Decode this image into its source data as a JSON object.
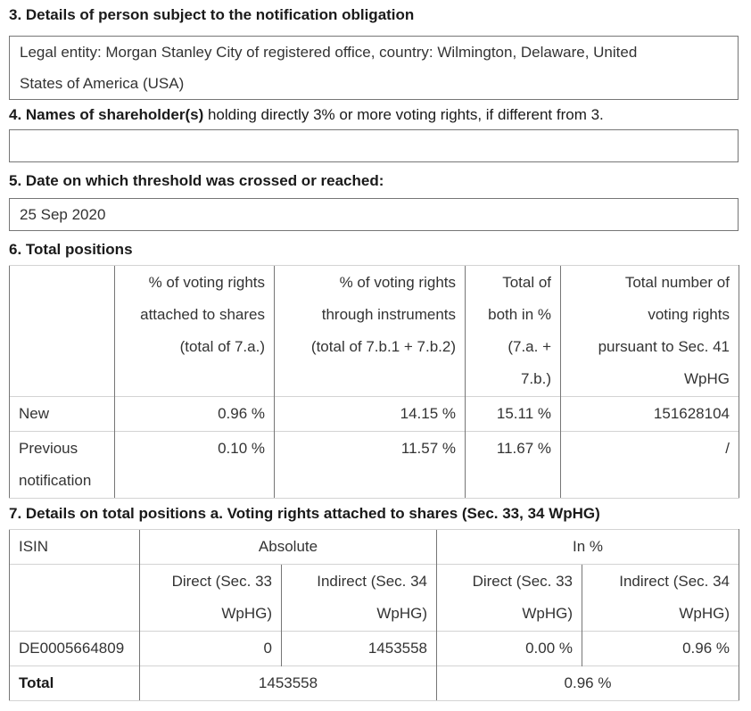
{
  "colors": {
    "background": "#ffffff",
    "text": "#333333",
    "heading": "#1a1a1a",
    "border_dark": "#767676",
    "border_light": "#d3d3d3"
  },
  "sections": {
    "s3": {
      "heading": "3. Details of person subject to the notification obligation",
      "box_text": "Legal entity: Morgan Stanley City of registered office, country: Wilmington, Delaware, United States of America (USA)"
    },
    "s4": {
      "heading_bold": "4. Names of shareholder(s)",
      "heading_rest": " holding directly 3% or more voting rights, if different from 3.",
      "box_text": ""
    },
    "s5": {
      "heading": "5. Date on which threshold was crossed or reached:",
      "box_text": "25 Sep 2020"
    },
    "s6": {
      "heading": "6. Total positions",
      "table": {
        "col_headers": [
          "",
          "% of voting rights attached to shares (total of 7.a.)",
          "% of voting rights through instruments (total of 7.b.1 + 7.b.2)",
          "Total of both in % (7.a. + 7.b.)",
          "Total number of voting rights pursuant to Sec. 41 WpHG"
        ],
        "rows": [
          {
            "label": "New",
            "values": [
              "0.96 %",
              "14.15 %",
              "15.11 %",
              "151628104"
            ]
          },
          {
            "label": "Previous notification",
            "values": [
              "0.10 %",
              "11.57 %",
              "11.67 %",
              "/"
            ]
          }
        ]
      }
    },
    "s7": {
      "heading": "7. Details on total positions a. Voting rights attached to shares (Sec. 33, 34 WpHG)",
      "table": {
        "corner": "ISIN",
        "group_headers": [
          "Absolute",
          "In %"
        ],
        "sub_headers": [
          "Direct (Sec. 33 WpHG)",
          "Indirect (Sec. 34 WpHG)",
          "Direct (Sec. 33 WpHG)",
          "Indirect (Sec. 34 WpHG)"
        ],
        "rows": [
          {
            "isin": "DE0005664809",
            "values": [
              "0",
              "1453558",
              "0.00 %",
              "0.96 %"
            ]
          }
        ],
        "total": {
          "label": "Total",
          "absolute": "1453558",
          "in_percent": "0.96 %"
        }
      }
    }
  }
}
